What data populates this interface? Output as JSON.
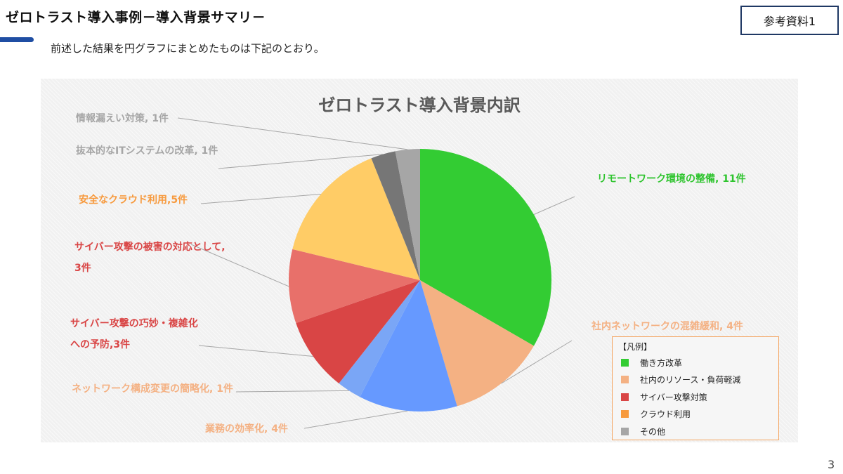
{
  "header": {
    "title": "ゼロトラスト導入事例－導入背景サマリ－",
    "reference": "参考資料1",
    "subtitle": "前述した結果を円グラフにまとめたものは下記のとおり。",
    "page_number": "3"
  },
  "chart_data": {
    "type": "pie",
    "title": "ゼロトラスト導入背景内訳",
    "start": "12 o'clock, clockwise",
    "slices": [
      {
        "label_lines": [
          "リモートワーク環境の整備, 11件"
        ],
        "value": 11,
        "color": "#33cc33",
        "label_color": "#2ec42e"
      },
      {
        "label_lines": [
          "社内ネットワークの混雑緩和, 4件"
        ],
        "value": 4,
        "color": "#f4b183",
        "label_color": "#f4b183"
      },
      {
        "label_lines": [
          "業務の効率化, 4件"
        ],
        "value": 4,
        "color": "#6699ff",
        "label_color": "#f4b183"
      },
      {
        "label_lines": [
          "ネットワーク構成変更の簡略化, 1件"
        ],
        "value": 1,
        "color": "#7aa6f6",
        "label_color": "#f4b183"
      },
      {
        "label_lines": [
          "サイバー攻撃の巧妙・複雑化",
          "への予防,3件"
        ],
        "value": 3,
        "color": "#d94545",
        "label_color": "#d94545"
      },
      {
        "label_lines": [
          "サイバー攻撃の被害の対応として,",
          "3件"
        ],
        "value": 3,
        "color": "#e8706a",
        "label_color": "#d94545"
      },
      {
        "label_lines": [
          "安全なクラウド利用,5件"
        ],
        "value": 5,
        "color": "#ffcc66",
        "label_color": "#f79a3e"
      },
      {
        "label_lines": [
          "抜本的なITシステムの改革, 1件"
        ],
        "value": 1,
        "color": "#767676",
        "label_color": "#a6a6a6"
      },
      {
        "label_lines": [
          "情報漏えい対策, 1件"
        ],
        "value": 1,
        "color": "#a6a6a6",
        "label_color": "#a6a6a6"
      }
    ],
    "legend": {
      "title": "【凡例】",
      "items": [
        {
          "label": "働き方改革",
          "color": "#33cc33"
        },
        {
          "label": "社内のリソース・負荷軽減",
          "color": "#f4b183"
        },
        {
          "label": "サイバー攻撃対策",
          "color": "#d94545"
        },
        {
          "label": "クラウド利用",
          "color": "#f79a3e"
        },
        {
          "label": "その他",
          "color": "#a6a6a6"
        }
      ]
    }
  }
}
